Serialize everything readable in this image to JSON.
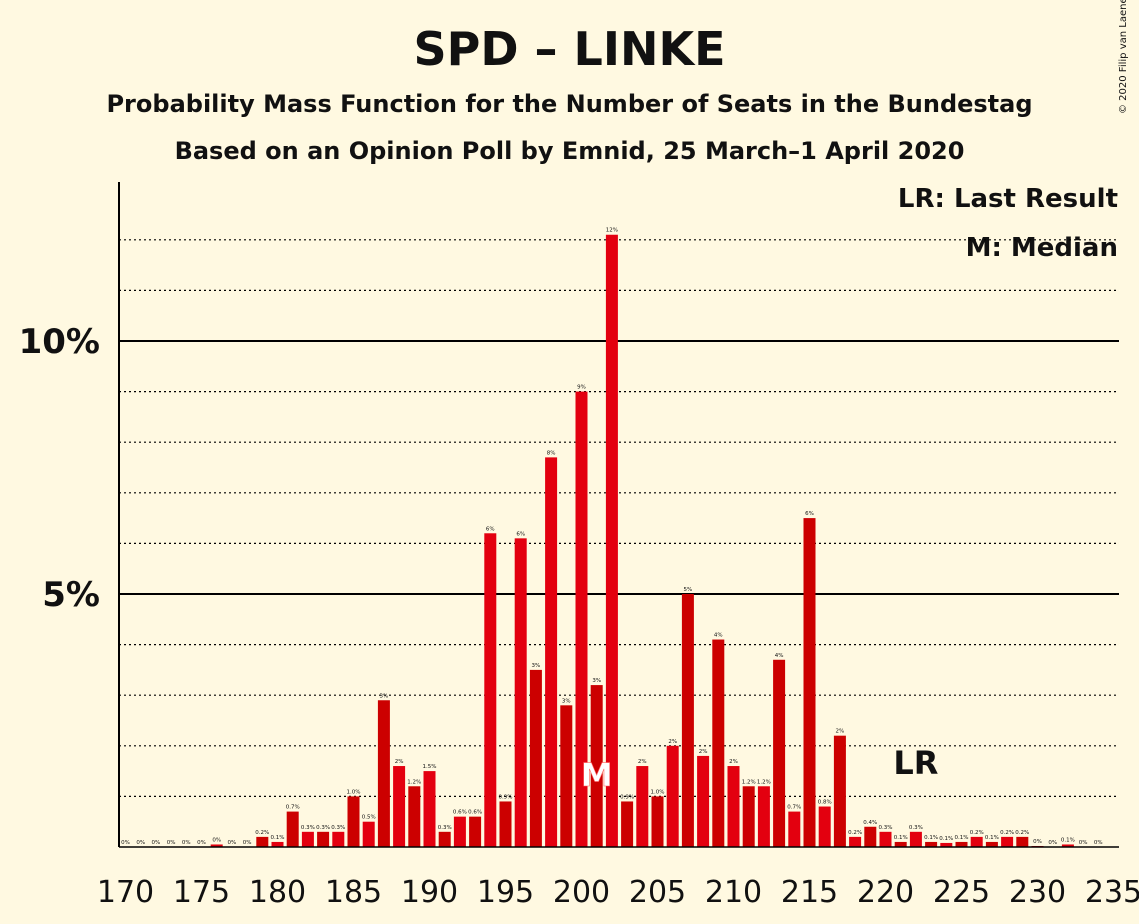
{
  "title": "SPD – LINKE",
  "subtitle": "Probability Mass Function for the Number of Seats in the Bundestag",
  "subtitle2": "Based on an Opinion Poll by Emnid, 25 March–1 April 2020",
  "copyright": "© 2020 Filip van Laenen",
  "legend": {
    "last_result": "LR: Last Result",
    "median": "M: Median"
  },
  "colors": {
    "bar_a": "#e3000f",
    "bar_b": "#cc0000",
    "background": "#fff9e1"
  },
  "chart_data": {
    "type": "bar",
    "title": "SPD – LINKE",
    "x": [
      170,
      171,
      172,
      173,
      174,
      175,
      176,
      177,
      178,
      179,
      180,
      181,
      182,
      183,
      184,
      185,
      186,
      187,
      188,
      189,
      190,
      191,
      192,
      193,
      194,
      195,
      196,
      197,
      198,
      199,
      200,
      201,
      202,
      203,
      204,
      205,
      206,
      207,
      208,
      209,
      210,
      211,
      212,
      213,
      214,
      215,
      216,
      217,
      218,
      219,
      220,
      221,
      222,
      223,
      224,
      225,
      226,
      227,
      228,
      229,
      230,
      231,
      232,
      233,
      234
    ],
    "values": [
      0,
      0,
      0,
      0,
      0,
      0,
      0.05,
      0,
      0,
      0.2,
      0.1,
      0.7,
      0.3,
      0.3,
      0.3,
      1.0,
      0.5,
      2.9,
      1.6,
      1.2,
      1.5,
      0.3,
      0.6,
      0.6,
      6.2,
      0.9,
      6.1,
      3.5,
      7.7,
      2.8,
      9.0,
      3.2,
      12.1,
      0.9,
      1.6,
      1.0,
      2.0,
      5.0,
      1.8,
      4.1,
      1.6,
      1.2,
      1.2,
      3.7,
      0.7,
      6.5,
      0.8,
      2.2,
      0.2,
      0.4,
      0.3,
      0.1,
      0.3,
      0.1,
      0.08,
      0.1,
      0.2,
      0.1,
      0.2,
      0.2,
      0.02,
      0,
      0.05,
      0,
      0
    ],
    "labels": [
      "0%",
      "0%",
      "0%",
      "0%",
      "0%",
      "0%",
      "0%",
      "0%",
      "0%",
      "0.2%",
      "0.1%",
      "0.7%",
      "0.3%",
      "0.3%",
      "0.3%",
      "1.0%",
      "0.5%",
      "3%",
      "2%",
      "1.2%",
      "1.5%",
      "0.3%",
      "0.6%",
      "0.6%",
      "6%",
      "0.9%",
      "6%",
      "3%",
      "8%",
      "3%",
      "9%",
      "3%",
      "12%",
      "0.9%",
      "2%",
      "1.0%",
      "2%",
      "5%",
      "2%",
      "4%",
      "2%",
      "1.2%",
      "1.2%",
      "4%",
      "0.7%",
      "6%",
      "0.8%",
      "2%",
      "0.2%",
      "0.4%",
      "0.3%",
      "0.1%",
      "0.3%",
      "0.1%",
      "0.1%",
      "0.1%",
      "0.2%",
      "0.1%",
      "0.2%",
      "0.2%",
      "0%",
      "0%",
      "0.1%",
      "0%",
      "0%"
    ],
    "x_ticks": [
      "170",
      "175",
      "180",
      "185",
      "190",
      "195",
      "200",
      "205",
      "210",
      "215",
      "220",
      "225",
      "230",
      "235"
    ],
    "y_ticks": [
      "5%",
      "10%"
    ],
    "ylim": [
      0,
      13
    ],
    "median": 201,
    "median_label": "M",
    "last_result": 222,
    "last_result_label": "LR"
  }
}
